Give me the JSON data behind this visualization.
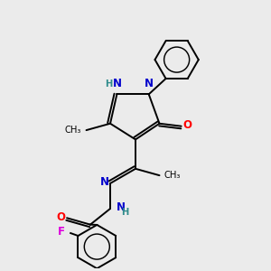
{
  "background_color": "#ebebeb",
  "bond_color": "#000000",
  "atom_colors": {
    "N": "#0000cc",
    "O": "#ff0000",
    "F": "#dd00dd",
    "H": "#2e8b8b",
    "C": "#000000"
  },
  "figsize": [
    3.0,
    3.0
  ],
  "dpi": 100,
  "bond_lw": 1.4
}
